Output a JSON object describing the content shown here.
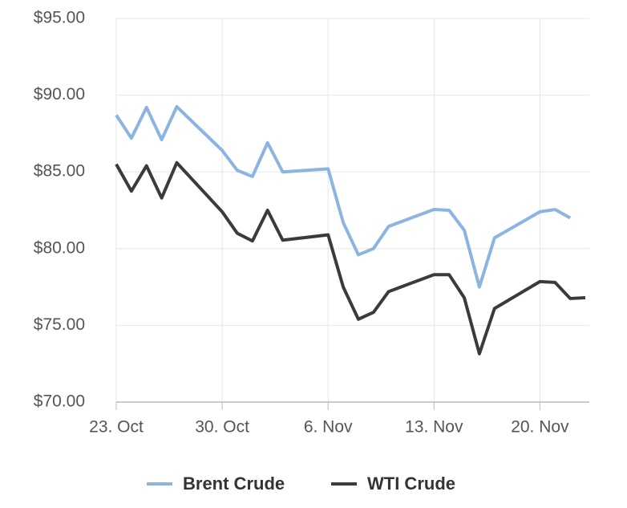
{
  "chart_data": {
    "type": "line",
    "x": [
      "23. Oct",
      "24. Oct",
      "25. Oct",
      "26. Oct",
      "27. Oct",
      "30. Oct",
      "31. Oct",
      "1. Nov",
      "2. Nov",
      "3. Nov",
      "6. Nov",
      "7. Nov",
      "8. Nov",
      "9. Nov",
      "10. Nov",
      "13. Nov",
      "14. Nov",
      "15. Nov",
      "16. Nov",
      "17. Nov",
      "20. Nov",
      "21. Nov",
      "22. Nov",
      "23. Nov"
    ],
    "series": [
      {
        "name": "Brent Crude",
        "color": "#8cb4e2",
        "values": [
          88.7,
          87.2,
          89.2,
          87.1,
          89.25,
          86.4,
          85.1,
          84.7,
          86.9,
          85.0,
          85.2,
          81.7,
          79.6,
          80.0,
          81.45,
          82.55,
          82.5,
          81.2,
          77.5,
          80.7,
          82.4,
          82.55,
          82.0,
          null
        ]
      },
      {
        "name": "WTI Crude",
        "color": "#3a3b3f",
        "values": [
          85.5,
          83.75,
          85.4,
          83.3,
          85.6,
          82.4,
          81.0,
          80.5,
          82.5,
          80.55,
          80.9,
          77.5,
          75.4,
          75.85,
          77.2,
          78.3,
          78.3,
          76.8,
          73.15,
          76.1,
          77.85,
          77.8,
          76.75,
          76.8
        ]
      }
    ],
    "xlim": [
      "23. Oct",
      "23. Nov"
    ],
    "xticks": [
      "23. Oct",
      "30. Oct",
      "6. Nov",
      "13. Nov",
      "20. Nov"
    ],
    "ylim": [
      70,
      95
    ],
    "yticks": [
      {
        "value": 70,
        "label": "$70.00"
      },
      {
        "value": 75,
        "label": "$75.00"
      },
      {
        "value": 80,
        "label": "$80.00"
      },
      {
        "value": 85,
        "label": "$85.00"
      },
      {
        "value": 90,
        "label": "$90.00"
      },
      {
        "value": 95,
        "label": "$95.00"
      }
    ],
    "grid": true,
    "legend": "bottom"
  }
}
